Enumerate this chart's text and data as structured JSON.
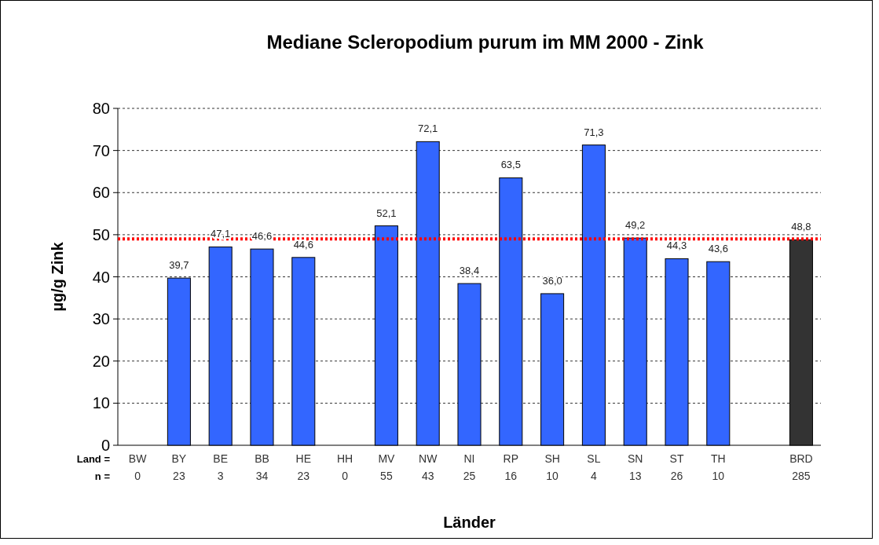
{
  "chart_data": {
    "type": "bar",
    "title": "Mediane Scleropodium purum im MM 2000 - Zink",
    "xlabel": "Länder",
    "ylabel": "µg/g Zink",
    "categories": [
      "BW\n0",
      "BY\n23",
      "BE\n3",
      "BB\n34",
      "HE\n23",
      "HH\n0",
      "MV\n55",
      "NW\n43",
      "NI\n25",
      "RP\n16",
      "SH\n10",
      "SL\n4",
      "SN\n13",
      "ST\n26",
      "TH\n10",
      null,
      "BRD\n285"
    ],
    "values": [
      null,
      39.7,
      47.1,
      46.6,
      44.6,
      null,
      52.1,
      72.1,
      38.4,
      63.5,
      36.0,
      71.3,
      49.2,
      44.3,
      43.6,
      null,
      48.8
    ],
    "value_labels": [
      null,
      "39,7",
      "47,1",
      "46,6",
      "44,6",
      null,
      "52,1",
      "72,1",
      "38,4",
      "63,5",
      "36,0",
      "71,3",
      "49,2",
      "44,3",
      "43,6",
      null,
      "48,8"
    ],
    "colors": [
      "#3366ff",
      "#3366ff",
      "#3366ff",
      "#3366ff",
      "#3366ff",
      "#3366ff",
      "#3366ff",
      "#3366ff",
      "#3366ff",
      "#3366ff",
      "#3366ff",
      "#3366ff",
      "#3366ff",
      "#3366ff",
      "#3366ff",
      "#3366ff",
      "#333333"
    ],
    "ylim": [
      0,
      80
    ],
    "yticks": [
      0,
      10,
      20,
      30,
      40,
      50,
      60,
      70,
      80
    ],
    "grid": "y",
    "ref_lines": [
      {
        "axis": "y",
        "value": 49,
        "color": "#ff0000",
        "line_style": "dotted"
      }
    ],
    "annotations": [
      "Land =",
      "n ="
    ]
  }
}
